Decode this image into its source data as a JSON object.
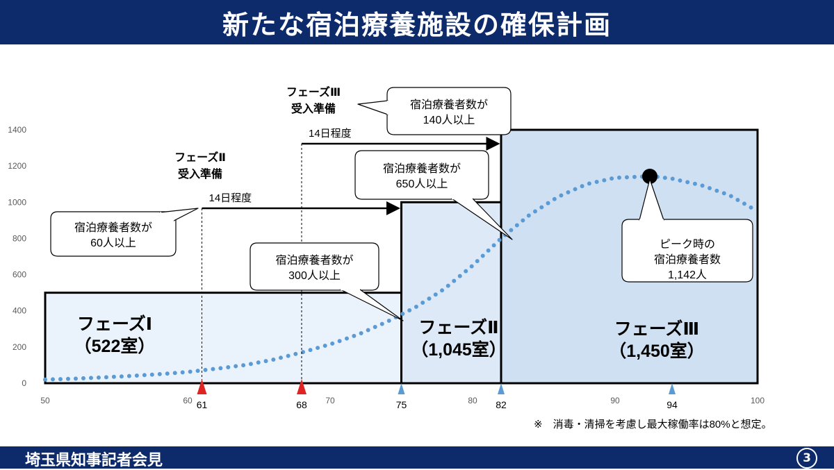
{
  "header": {
    "title": "新たな宿泊療養施設の確保計画"
  },
  "footer": {
    "text": "埼玉県知事記者会見",
    "page": "3"
  },
  "note": "※　消毒・清掃を考慮し最大稼働率は80%と想定。",
  "colors": {
    "title_bar": "#0d2a6b",
    "curve": "#5b9bd5",
    "phase1_fill": "#eaf2fb",
    "phase2_fill": "#dde9f6",
    "phase3_fill": "#cfe0f3",
    "marker_red": "#e02424",
    "marker_blue": "#5b9bd5"
  },
  "chart_data": {
    "type": "area",
    "xlim": [
      50,
      100
    ],
    "ylim": [
      0,
      1400
    ],
    "x_ticks": [
      50,
      60,
      70,
      80,
      90,
      100
    ],
    "y_ticks": [
      0,
      200,
      400,
      600,
      800,
      1000,
      1200,
      1400
    ],
    "grid": false,
    "curve": {
      "x": [
        50,
        52,
        54,
        56,
        58,
        60,
        62,
        64,
        66,
        68,
        70,
        72,
        74,
        76,
        78,
        80,
        82,
        84,
        86,
        88,
        90,
        92,
        93,
        94,
        96,
        98,
        100
      ],
      "y": [
        20,
        25,
        32,
        40,
        50,
        62,
        80,
        100,
        130,
        170,
        215,
        270,
        340,
        420,
        520,
        650,
        800,
        930,
        1030,
        1100,
        1135,
        1142,
        1140,
        1130,
        1095,
        1040,
        950
      ]
    },
    "phases": [
      {
        "label": "フェーズⅠ",
        "rooms": "（522室）",
        "x_start": 50,
        "x_end": 75,
        "height": 500
      },
      {
        "label": "フェーズⅡ",
        "rooms": "（1,045室）",
        "x_start": 75,
        "x_end": 82,
        "height": 1000
      },
      {
        "label": "フェーズⅢ",
        "rooms": "（1,450室）",
        "x_start": 82,
        "x_end": 100,
        "height": 1400
      }
    ],
    "markers": [
      {
        "x": 61,
        "label": "61",
        "color": "red"
      },
      {
        "x": 68,
        "label": "68",
        "color": "red"
      },
      {
        "x": 75,
        "label": "75",
        "color": "blue"
      },
      {
        "x": 82,
        "label": "82",
        "color": "blue"
      },
      {
        "x": 94,
        "label": "94",
        "color": "blue"
      }
    ],
    "prep": [
      {
        "label": "フェーズⅡ\n受入準備",
        "duration": "14日程度",
        "x_start": 61,
        "x_end": 75,
        "y": 1000
      },
      {
        "label": "フェーズⅢ\n受入準備",
        "duration": "14日程度",
        "x_start": 68,
        "x_end": 82,
        "y": 1400
      }
    ],
    "peak": {
      "x": 93,
      "y": 1142,
      "label": "ピーク時の\n宿泊療養者数\n1,142人"
    },
    "callouts": [
      {
        "text": "宿泊療養者数が\n60人以上"
      },
      {
        "text": "宿泊療養者数が\n300人以上"
      },
      {
        "text": "宿泊療養者数が\n650人以上"
      },
      {
        "text": "宿泊療養者数が\n140人以上"
      }
    ]
  }
}
